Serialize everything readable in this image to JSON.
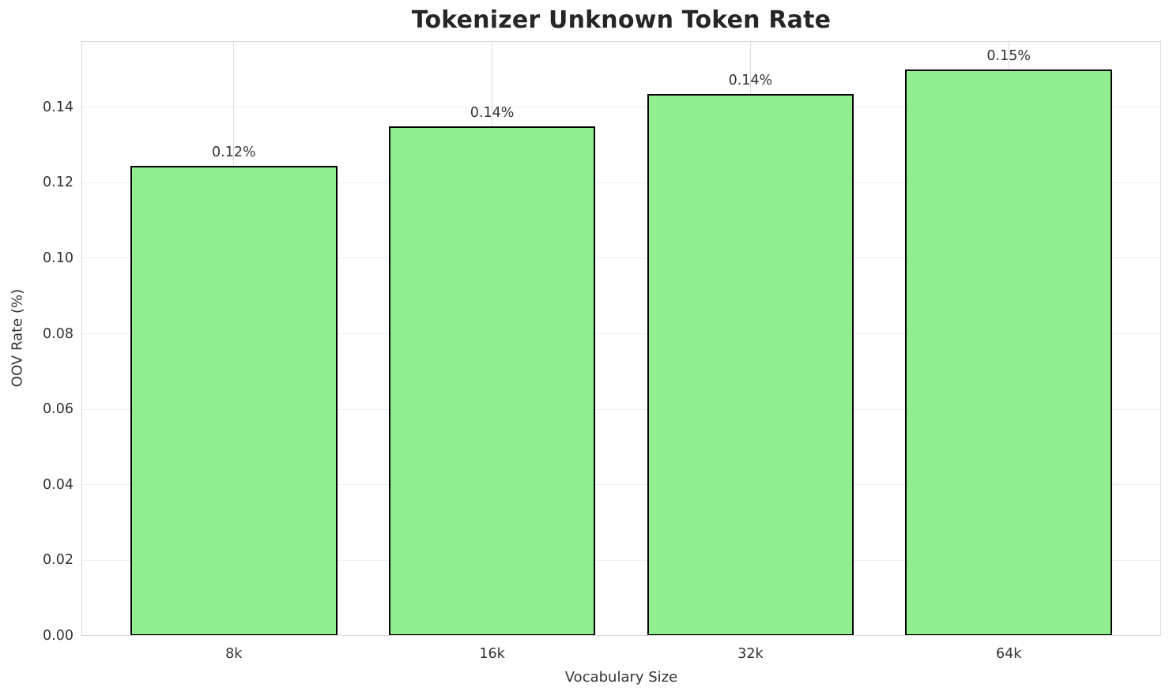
{
  "chart_data": {
    "type": "bar",
    "title": "Tokenizer Unknown Token Rate",
    "xlabel": "Vocabulary Size",
    "ylabel": "OOV Rate (%)",
    "categories": [
      "8k",
      "16k",
      "32k",
      "64k"
    ],
    "values": [
      0.1245,
      0.135,
      0.1435,
      0.15
    ],
    "bar_labels": [
      "0.12%",
      "0.14%",
      "0.14%",
      "0.15%"
    ],
    "ylim": [
      0,
      0.1575
    ],
    "ytick_values": [
      0.0,
      0.02,
      0.04,
      0.06,
      0.08,
      0.1,
      0.12,
      0.14
    ],
    "ytick_labels": [
      "0.00",
      "0.02",
      "0.04",
      "0.06",
      "0.08",
      "0.10",
      "0.12",
      "0.14"
    ],
    "grid": "both",
    "legend": "none",
    "colors": {
      "bar_fill": "#90EE90",
      "bar_edge": "#000000",
      "title_text": "#262626",
      "tick_text": "#333333",
      "label_text": "#333333",
      "grid_h": "#ededed",
      "grid_v": "#dcdcdc",
      "spine": "#d5d5d5",
      "background": "#ffffff"
    }
  }
}
